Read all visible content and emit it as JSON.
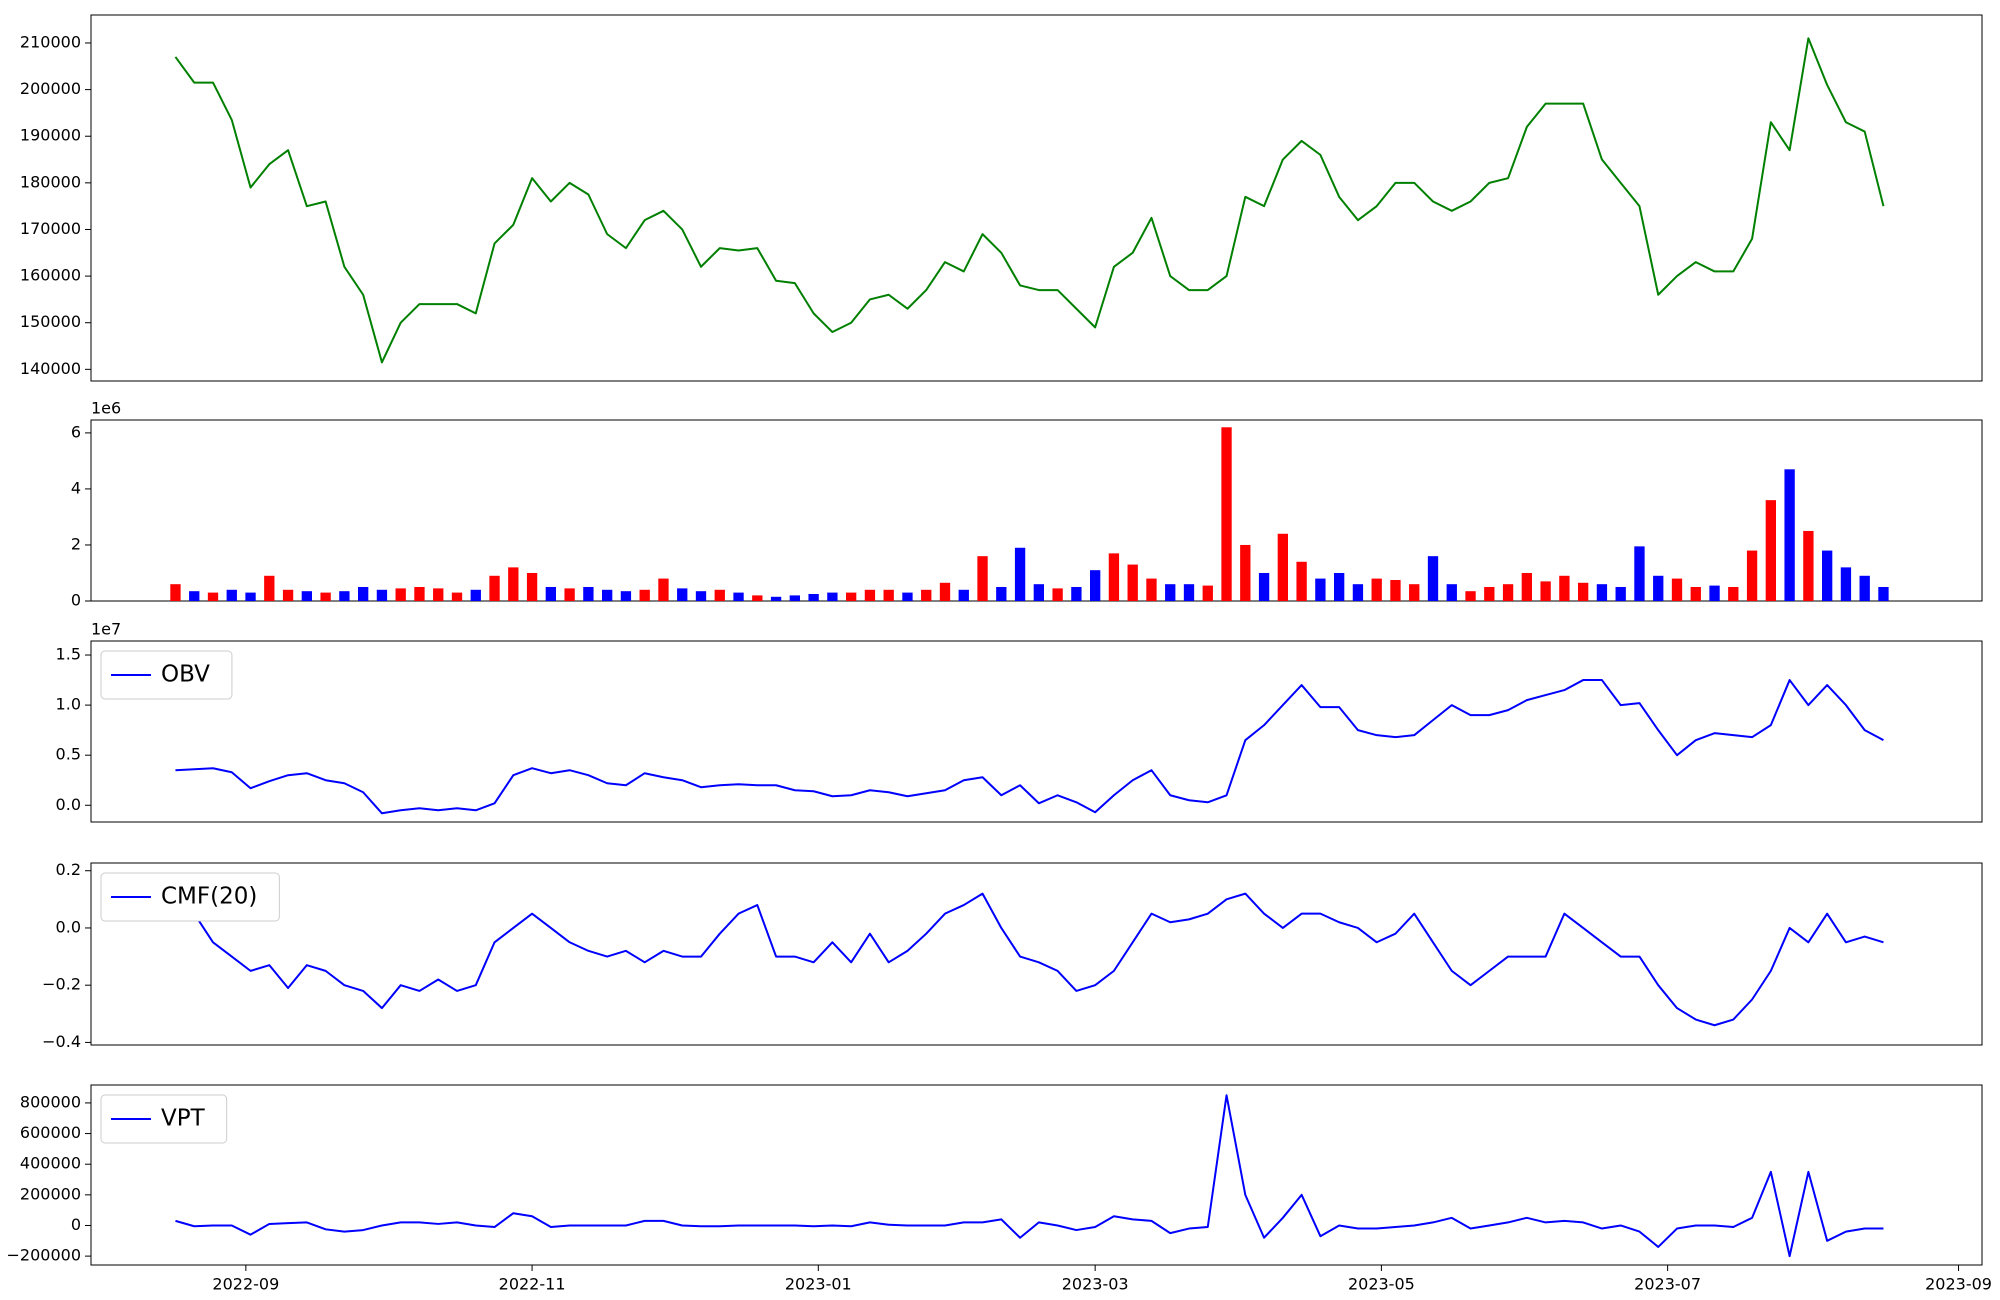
{
  "chart_data": [
    {
      "type": "line",
      "xlim": [
        19203,
        19606
      ],
      "ylim": [
        137500,
        216000
      ],
      "yticks": [
        140000,
        150000,
        160000,
        170000,
        180000,
        190000,
        200000,
        210000
      ],
      "x": [
        19221,
        19225,
        19229,
        19233,
        19237,
        19241,
        19245,
        19249,
        19253,
        19257,
        19261,
        19265,
        19269,
        19273,
        19277,
        19281,
        19285,
        19289,
        19293,
        19297,
        19301,
        19305,
        19309,
        19313,
        19317,
        19321,
        19325,
        19329,
        19333,
        19337,
        19341,
        19345,
        19349,
        19353,
        19357,
        19361,
        19365,
        19369,
        19373,
        19377,
        19381,
        19385,
        19389,
        19393,
        19397,
        19401,
        19405,
        19409,
        19413,
        19417,
        19421,
        19425,
        19429,
        19433,
        19437,
        19441,
        19445,
        19449,
        19453,
        19457,
        19461,
        19465,
        19469,
        19473,
        19477,
        19481,
        19485,
        19489,
        19493,
        19497,
        19501,
        19505,
        19509,
        19513,
        19517,
        19521,
        19525,
        19529,
        19533,
        19537,
        19541,
        19545,
        19549,
        19553,
        19557,
        19561,
        19565,
        19569,
        19573,
        19577,
        19581,
        19585
      ],
      "series": [
        {
          "color": "#008000",
          "values": [
            207000,
            201500,
            201500,
            193500,
            179000,
            184000,
            187000,
            175000,
            176000,
            162000,
            156000,
            141500,
            150000,
            154000,
            154000,
            154000,
            152000,
            167000,
            171000,
            181000,
            176000,
            180000,
            177500,
            169000,
            166000,
            172000,
            174000,
            170000,
            162000,
            166000,
            165500,
            166000,
            159000,
            158500,
            152000,
            148000,
            150000,
            155000,
            156000,
            153000,
            157000,
            163000,
            161000,
            169000,
            165000,
            158000,
            157000,
            157000,
            153000,
            149000,
            162000,
            165000,
            172500,
            160000,
            157000,
            157000,
            160000,
            177000,
            175000,
            185000,
            189000,
            186000,
            177000,
            172000,
            175000,
            180000,
            180000,
            176000,
            174000,
            176000,
            180000,
            181000,
            192000,
            197000,
            197000,
            197000,
            185000,
            180000,
            175000,
            156000,
            160000,
            163000,
            161000,
            161000,
            168000,
            193000,
            187000,
            211000,
            201000,
            193000,
            191000,
            175000
          ]
        }
      ]
    },
    {
      "type": "bar",
      "xlim": [
        19203,
        19606
      ],
      "ylim": [
        0,
        6460000
      ],
      "y_offset_label": "1e6",
      "yticks": [
        0,
        {
          "value": 2000000,
          "label": "2"
        },
        {
          "value": 4000000,
          "label": "4"
        },
        {
          "value": 6000000,
          "label": "6"
        }
      ],
      "bar_colors": {
        "up": "#ff0000",
        "down": "#0000ff"
      },
      "x": [
        19221,
        19225,
        19229,
        19233,
        19237,
        19241,
        19245,
        19249,
        19253,
        19257,
        19261,
        19265,
        19269,
        19273,
        19277,
        19281,
        19285,
        19289,
        19293,
        19297,
        19301,
        19305,
        19309,
        19313,
        19317,
        19321,
        19325,
        19329,
        19333,
        19337,
        19341,
        19345,
        19349,
        19353,
        19357,
        19361,
        19365,
        19369,
        19373,
        19377,
        19381,
        19385,
        19389,
        19393,
        19397,
        19401,
        19405,
        19409,
        19413,
        19417,
        19421,
        19425,
        19429,
        19433,
        19437,
        19441,
        19445,
        19449,
        19453,
        19457,
        19461,
        19465,
        19469,
        19473,
        19477,
        19481,
        19485,
        19489,
        19493,
        19497,
        19501,
        19505,
        19509,
        19513,
        19517,
        19521,
        19525,
        19529,
        19533,
        19537,
        19541,
        19545,
        19549,
        19553,
        19557,
        19561,
        19565,
        19569,
        19573,
        19577,
        19581,
        19585
      ],
      "values": [
        600000,
        350000,
        300000,
        400000,
        300000,
        900000,
        400000,
        350000,
        300000,
        350000,
        500000,
        400000,
        450000,
        500000,
        450000,
        300000,
        400000,
        900000,
        1200000,
        1000000,
        500000,
        450000,
        500000,
        400000,
        350000,
        400000,
        800000,
        450000,
        350000,
        400000,
        300000,
        200000,
        150000,
        200000,
        250000,
        300000,
        300000,
        400000,
        400000,
        300000,
        400000,
        650000,
        400000,
        1600000,
        500000,
        1900000,
        600000,
        450000,
        500000,
        1100000,
        1700000,
        1300000,
        800000,
        600000,
        600000,
        550000,
        6200000,
        2000000,
        1000000,
        2400000,
        1400000,
        800000,
        1000000,
        600000,
        800000,
        750000,
        600000,
        1600000,
        600000,
        350000,
        500000,
        600000,
        1000000,
        700000,
        900000,
        650000,
        600000,
        500000,
        1950000,
        900000,
        800000,
        500000,
        550000,
        500000,
        1800000,
        3600000,
        4700000,
        2500000,
        1800000,
        1200000,
        900000,
        500000
      ]
    },
    {
      "type": "line",
      "xlim": [
        19203,
        19606
      ],
      "ylim": [
        -1670000,
        16400000
      ],
      "y_offset_label": "1e7",
      "legend": "upper left",
      "yticks": [
        {
          "value": 0,
          "label": "0.0"
        },
        {
          "value": 5000000,
          "label": "0.5"
        },
        {
          "value": 10000000,
          "label": "1.0"
        },
        {
          "value": 15000000,
          "label": "1.5"
        }
      ],
      "x": [
        19221,
        19225,
        19229,
        19233,
        19237,
        19241,
        19245,
        19249,
        19253,
        19257,
        19261,
        19265,
        19269,
        19273,
        19277,
        19281,
        19285,
        19289,
        19293,
        19297,
        19301,
        19305,
        19309,
        19313,
        19317,
        19321,
        19325,
        19329,
        19333,
        19337,
        19341,
        19345,
        19349,
        19353,
        19357,
        19361,
        19365,
        19369,
        19373,
        19377,
        19381,
        19385,
        19389,
        19393,
        19397,
        19401,
        19405,
        19409,
        19413,
        19417,
        19421,
        19425,
        19429,
        19433,
        19437,
        19441,
        19445,
        19449,
        19453,
        19457,
        19461,
        19465,
        19469,
        19473,
        19477,
        19481,
        19485,
        19489,
        19493,
        19497,
        19501,
        19505,
        19509,
        19513,
        19517,
        19521,
        19525,
        19529,
        19533,
        19537,
        19541,
        19545,
        19549,
        19553,
        19557,
        19561,
        19565,
        19569,
        19573,
        19577,
        19581,
        19585
      ],
      "series": [
        {
          "name": "OBV",
          "color": "#0000ff",
          "values": [
            3500000,
            3600000,
            3700000,
            3300000,
            1700000,
            2400000,
            3000000,
            3200000,
            2500000,
            2200000,
            1300000,
            -800000,
            -500000,
            -300000,
            -500000,
            -300000,
            -500000,
            200000,
            3000000,
            3700000,
            3200000,
            3500000,
            3000000,
            2200000,
            2000000,
            3200000,
            2800000,
            2500000,
            1800000,
            2000000,
            2100000,
            2000000,
            2000000,
            1500000,
            1400000,
            900000,
            1000000,
            1500000,
            1300000,
            900000,
            1200000,
            1500000,
            2500000,
            2800000,
            1000000,
            2000000,
            200000,
            1000000,
            300000,
            -700000,
            1000000,
            2500000,
            3500000,
            1000000,
            500000,
            300000,
            1000000,
            6500000,
            8000000,
            10000000,
            12000000,
            9800000,
            9800000,
            7500000,
            7000000,
            6800000,
            7000000,
            8500000,
            10000000,
            9000000,
            9000000,
            9500000,
            10500000,
            11000000,
            11500000,
            12500000,
            12500000,
            10000000,
            10200000,
            7500000,
            5000000,
            6500000,
            7200000,
            7000000,
            6800000,
            8000000,
            12500000,
            10000000,
            12000000,
            10000000,
            7500000,
            6500000
          ]
        }
      ]
    },
    {
      "type": "line",
      "xlim": [
        19203,
        19606
      ],
      "ylim": [
        -0.409,
        0.227
      ],
      "legend": "upper left",
      "yticks": [
        {
          "value": -0.4,
          "label": "−0.4"
        },
        {
          "value": -0.2,
          "label": "−0.2"
        },
        {
          "value": 0,
          "label": "0.0"
        },
        {
          "value": 0.2,
          "label": "0.2"
        }
      ],
      "x": [
        19221,
        19225,
        19229,
        19233,
        19237,
        19241,
        19245,
        19249,
        19253,
        19257,
        19261,
        19265,
        19269,
        19273,
        19277,
        19281,
        19285,
        19289,
        19293,
        19297,
        19301,
        19305,
        19309,
        19313,
        19317,
        19321,
        19325,
        19329,
        19333,
        19337,
        19341,
        19345,
        19349,
        19353,
        19357,
        19361,
        19365,
        19369,
        19373,
        19377,
        19381,
        19385,
        19389,
        19393,
        19397,
        19401,
        19405,
        19409,
        19413,
        19417,
        19421,
        19425,
        19429,
        19433,
        19437,
        19441,
        19445,
        19449,
        19453,
        19457,
        19461,
        19465,
        19469,
        19473,
        19477,
        19481,
        19485,
        19489,
        19493,
        19497,
        19501,
        19505,
        19509,
        19513,
        19517,
        19521,
        19525,
        19529,
        19533,
        19537,
        19541,
        19545,
        19549,
        19553,
        19557,
        19561,
        19565,
        19569,
        19573,
        19577,
        19581,
        19585
      ],
      "series": [
        {
          "name": "CMF(20)",
          "color": "#0000ff",
          "values": [
            0.08,
            0.05,
            -0.05,
            -0.1,
            -0.15,
            -0.13,
            -0.21,
            -0.13,
            -0.15,
            -0.2,
            -0.22,
            -0.28,
            -0.2,
            -0.22,
            -0.18,
            -0.22,
            -0.2,
            -0.05,
            0.0,
            0.05,
            0.0,
            -0.05,
            -0.08,
            -0.1,
            -0.08,
            -0.12,
            -0.08,
            -0.1,
            -0.1,
            -0.02,
            0.05,
            0.08,
            -0.1,
            -0.1,
            -0.12,
            -0.05,
            -0.12,
            -0.02,
            -0.12,
            -0.08,
            -0.02,
            0.05,
            0.08,
            0.12,
            0.0,
            -0.1,
            -0.12,
            -0.15,
            -0.22,
            -0.2,
            -0.15,
            -0.05,
            0.05,
            0.02,
            0.03,
            0.05,
            0.1,
            0.12,
            0.05,
            0.0,
            0.05,
            0.05,
            0.02,
            0.0,
            -0.05,
            -0.02,
            0.05,
            -0.05,
            -0.15,
            -0.2,
            -0.15,
            -0.1,
            -0.1,
            -0.1,
            0.05,
            0.0,
            -0.05,
            -0.1,
            -0.1,
            -0.2,
            -0.28,
            -0.32,
            -0.34,
            -0.32,
            -0.25,
            -0.15,
            0.0,
            -0.05,
            0.05,
            -0.05,
            -0.03,
            -0.05
          ]
        }
      ]
    },
    {
      "type": "line",
      "xlim": [
        19203,
        19606
      ],
      "ylim": [
        -258000,
        917000
      ],
      "legend": "upper left",
      "yticks": [
        {
          "value": -200000,
          "label": "−200000"
        },
        0,
        200000,
        400000,
        600000,
        800000
      ],
      "xticks": [
        {
          "value": 19236,
          "label": "2022-09"
        },
        {
          "value": 19297,
          "label": "2022-11"
        },
        {
          "value": 19358,
          "label": "2023-01"
        },
        {
          "value": 19417,
          "label": "2023-03"
        },
        {
          "value": 19478,
          "label": "2023-05"
        },
        {
          "value": 19539,
          "label": "2023-07"
        },
        {
          "value": 19601,
          "label": "2023-09"
        }
      ],
      "x": [
        19221,
        19225,
        19229,
        19233,
        19237,
        19241,
        19245,
        19249,
        19253,
        19257,
        19261,
        19265,
        19269,
        19273,
        19277,
        19281,
        19285,
        19289,
        19293,
        19297,
        19301,
        19305,
        19309,
        19313,
        19317,
        19321,
        19325,
        19329,
        19333,
        19337,
        19341,
        19345,
        19349,
        19353,
        19357,
        19361,
        19365,
        19369,
        19373,
        19377,
        19381,
        19385,
        19389,
        19393,
        19397,
        19401,
        19405,
        19409,
        19413,
        19417,
        19421,
        19425,
        19429,
        19433,
        19437,
        19441,
        19445,
        19449,
        19453,
        19457,
        19461,
        19465,
        19469,
        19473,
        19477,
        19481,
        19485,
        19489,
        19493,
        19497,
        19501,
        19505,
        19509,
        19513,
        19517,
        19521,
        19525,
        19529,
        19533,
        19537,
        19541,
        19545,
        19549,
        19553,
        19557,
        19561,
        19565,
        19569,
        19573,
        19577,
        19581,
        19585
      ],
      "series": [
        {
          "name": "VPT",
          "color": "#0000ff",
          "values": [
            30000,
            -5000,
            0,
            0,
            -60000,
            10000,
            15000,
            20000,
            -25000,
            -40000,
            -30000,
            0,
            20000,
            20000,
            10000,
            20000,
            0,
            -10000,
            80000,
            60000,
            -10000,
            0,
            0,
            0,
            0,
            30000,
            30000,
            0,
            -5000,
            -5000,
            0,
            0,
            0,
            0,
            -5000,
            0,
            -5000,
            20000,
            5000,
            0,
            0,
            0,
            20000,
            20000,
            40000,
            -80000,
            20000,
            0,
            -30000,
            -10000,
            60000,
            40000,
            30000,
            -50000,
            -20000,
            -10000,
            850000,
            200000,
            -80000,
            50000,
            200000,
            -70000,
            0,
            -20000,
            -20000,
            -10000,
            0,
            20000,
            50000,
            -20000,
            0,
            20000,
            50000,
            20000,
            30000,
            20000,
            -20000,
            0,
            -40000,
            -140000,
            -20000,
            0,
            0,
            -10000,
            50000,
            350000,
            -200000,
            350000,
            -100000,
            -40000,
            -20000,
            -20000
          ]
        }
      ]
    }
  ]
}
